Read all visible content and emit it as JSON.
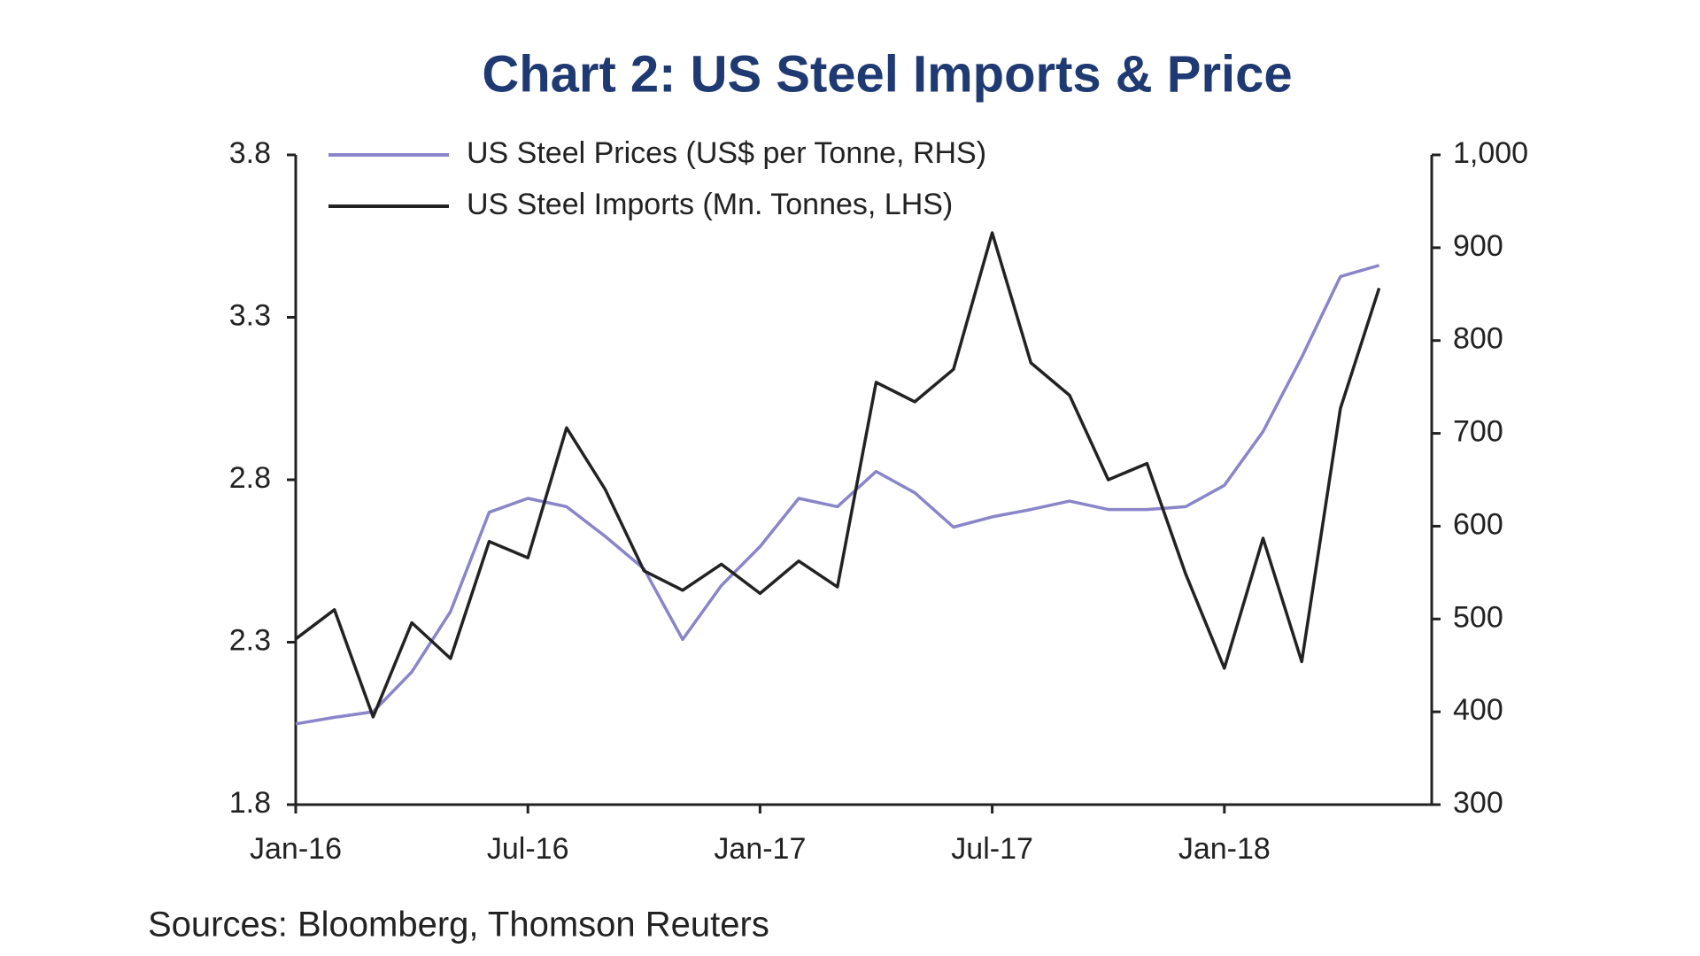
{
  "chart_data": {
    "type": "line",
    "title": "Chart 2: US Steel Imports & Price",
    "source": "Sources: Bloomberg, Thomson Reuters",
    "categories": [
      "Jan-16",
      null,
      null,
      null,
      null,
      null,
      "Jul-16",
      null,
      null,
      null,
      null,
      null,
      "Jan-17",
      null,
      null,
      null,
      null,
      null,
      "Jul-17",
      null,
      null,
      null,
      null,
      null,
      "Jan-18",
      null,
      null,
      null,
      null
    ],
    "series": [
      {
        "name": "US Steel Prices (US$ per Tonne, RHS)",
        "color": "#8a85c9",
        "axis": "y2",
        "values": [
          387,
          394,
          400,
          443,
          508,
          615,
          630,
          621,
          589,
          554,
          478,
          536,
          578,
          630,
          621,
          659,
          636,
          599,
          610,
          618,
          627,
          618,
          618,
          621,
          644,
          702,
          782,
          869,
          881
        ]
      },
      {
        "name": "US Steel Imports (Mn. Tonnes, LHS)",
        "color": "#222222",
        "values": [
          2.31,
          2.4,
          2.07,
          2.36,
          2.25,
          2.61,
          2.56,
          2.96,
          2.77,
          2.52,
          2.46,
          2.54,
          2.45,
          2.55,
          2.47,
          3.1,
          3.04,
          3.14,
          3.56,
          3.16,
          3.06,
          2.8,
          2.85,
          2.51,
          2.22,
          2.62,
          2.24,
          3.02,
          3.39
        ]
      }
    ],
    "ylim": [
      1.8,
      3.8
    ],
    "yticks": [
      1.8,
      2.3,
      2.8,
      3.3,
      3.8
    ],
    "y2lim": [
      300,
      1000
    ],
    "y2ticks": [
      300,
      400,
      500,
      600,
      700,
      800,
      900,
      {
        "value": 1000,
        "label": "1,000"
      }
    ],
    "grid": false
  }
}
